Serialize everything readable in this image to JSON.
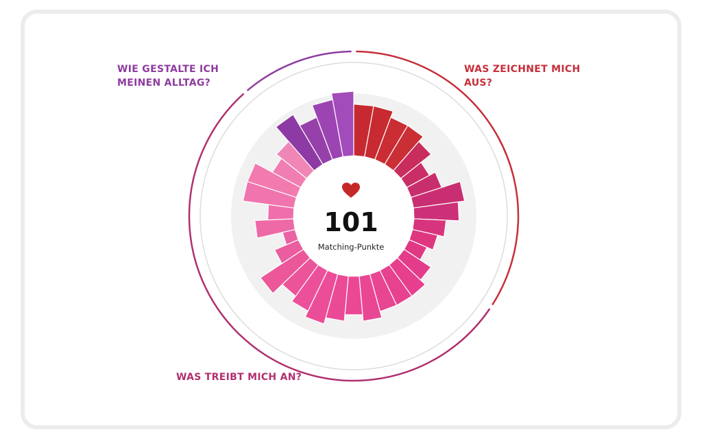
{
  "score": {
    "value": "101",
    "label": "Matching-Punkte",
    "icon": "heart-icon",
    "icon_color": "#c62828"
  },
  "chart_data": {
    "type": "radial-bar",
    "max_value": 10,
    "groups": [
      {
        "title": "WIE GESTALTE ICH\nMEINEN ALLTAG?",
        "color": "#8e3c9f",
        "values": [
          9,
          7,
          9,
          10
        ]
      },
      {
        "title": "WAS ZEICHNET MICH\nAUS?",
        "color": "#c62f3a",
        "values": [
          8,
          8,
          7,
          7,
          6,
          4,
          5,
          8,
          7,
          5,
          4,
          3
        ]
      },
      {
        "title": "WAS TREIBT MICH AN?",
        "color": "#b0306f",
        "values": [
          5,
          6,
          6,
          6,
          7,
          6,
          7,
          8,
          7,
          6,
          8,
          4,
          2,
          6,
          4,
          8,
          8,
          5,
          6
        ]
      }
    ],
    "bar_colors": [
      "#8d3aa4",
      "#9641a9",
      "#9d44b3",
      "#a24bbb",
      "#c62a30",
      "#c72a30",
      "#ca2d33",
      "#cb2f36",
      "#c82d5e",
      "#c92e66",
      "#c92e6c",
      "#c92e72",
      "#cc3078",
      "#d8347d",
      "#de3780",
      "#e03884",
      "#e33c8a",
      "#e63f8d",
      "#e64290",
      "#e84592",
      "#e94794",
      "#ea4895",
      "#eb4a97",
      "#ec4d98",
      "#ec509a",
      "#ec5499",
      "#eb5799",
      "#ea5d9e",
      "#ea62a3",
      "#ed6aa7",
      "#ef6eab",
      "#f074ae",
      "#f37aaf",
      "#f07eb2",
      "#f086b6"
    ]
  }
}
